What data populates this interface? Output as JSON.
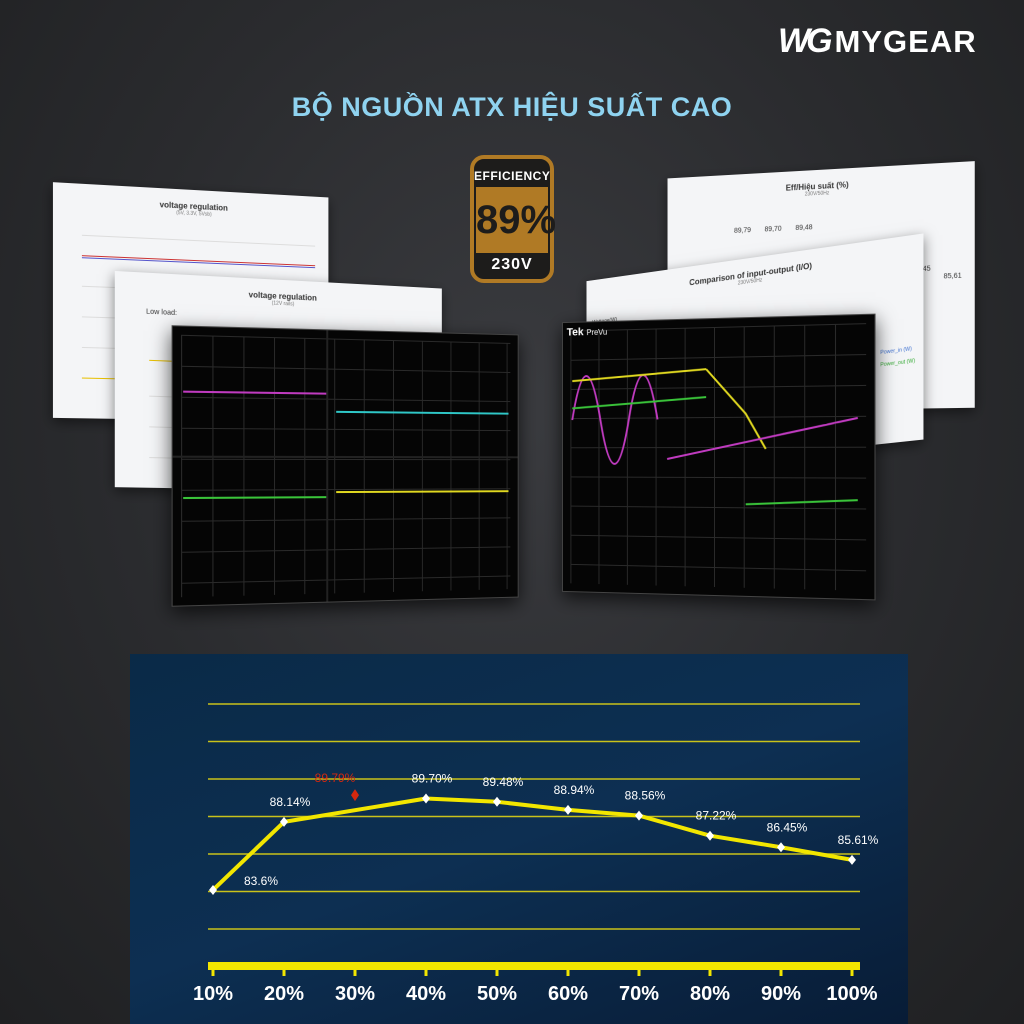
{
  "brand": {
    "logo_mark": "WG",
    "name": "MYGEAR"
  },
  "headline": "BỘ NGUỒN ATX HIỆU SUẤT CAO",
  "badge": {
    "label": "EFFICIENCY",
    "value": "89%",
    "voltage": "230V",
    "color": "#b07a25"
  },
  "sheets": {
    "left_back": {
      "title": "voltage regulation",
      "subtitle": "(5V, 3.3V, 5Vsb)"
    },
    "left_front": {
      "title": "voltage regulation",
      "subtitle": "(12V rails)",
      "note": "Low load:"
    },
    "right_back": {
      "title": "Eff/Hiệu suất (%)",
      "subtitle": "230V/50Hz",
      "values": [
        "89,79",
        "89,70",
        "89,48",
        "86,45",
        "85,61"
      ]
    },
    "right_front": {
      "title": "Comparison of input-output (I/O)",
      "subtitle": "230V/50Hz",
      "ylabel": "Wattage(W)",
      "legend": [
        "Power_in (W)",
        "Power_out (W)"
      ]
    }
  },
  "scope": {
    "brand": "Tek",
    "mode": "PreVu"
  },
  "chart_data": {
    "type": "line",
    "categories": [
      "10%",
      "20%",
      "30%",
      "40%",
      "50%",
      "60%",
      "70%",
      "80%",
      "90%",
      "100%"
    ],
    "series": [
      {
        "values": [
          83.6,
          88.14,
          null,
          89.7,
          89.48,
          88.94,
          88.56,
          87.22,
          86.45,
          85.61
        ],
        "labels": [
          "83.6%",
          "88.14%",
          "",
          "89.70%",
          "89.48%",
          "88.94%",
          "88.56%",
          "87.22%",
          "86.45%",
          "85.61%"
        ],
        "color": "#f2e600"
      }
    ],
    "highlight": {
      "category": "30%",
      "value": 89.79,
      "label": "89.79%",
      "color": "#d4280f"
    },
    "ylim": [
      81,
      96
    ],
    "grid": true,
    "title": "",
    "xlabel": "",
    "ylabel": ""
  }
}
